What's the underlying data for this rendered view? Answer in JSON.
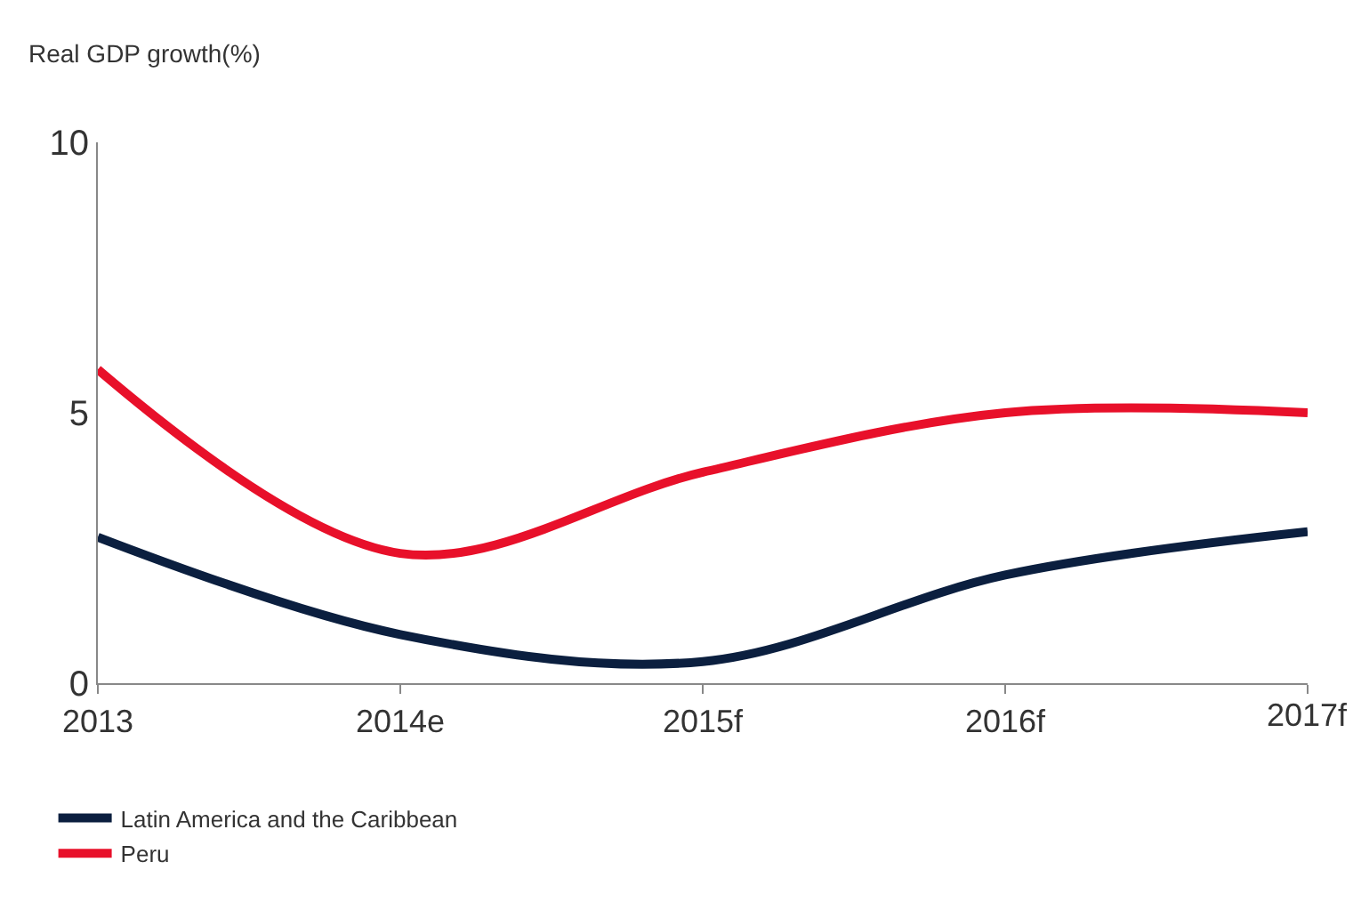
{
  "chart_data": {
    "type": "line",
    "ylabel": "Real GDP growth(%)",
    "categories": [
      "2013",
      "2014e",
      "2015f",
      "2016f",
      "2017f"
    ],
    "series": [
      {
        "name": "Latin America and the Caribbean",
        "color": "#0b1f3f",
        "values": [
          2.7,
          0.9,
          0.4,
          2.0,
          2.8
        ]
      },
      {
        "name": "Peru",
        "color": "#e8102a",
        "values": [
          5.8,
          2.4,
          3.9,
          5.0,
          5.0
        ]
      }
    ],
    "ylim": [
      0,
      10
    ],
    "yticks": [
      0,
      5,
      10
    ],
    "legend": "bottom",
    "marker": "none",
    "line_style": "solid"
  }
}
